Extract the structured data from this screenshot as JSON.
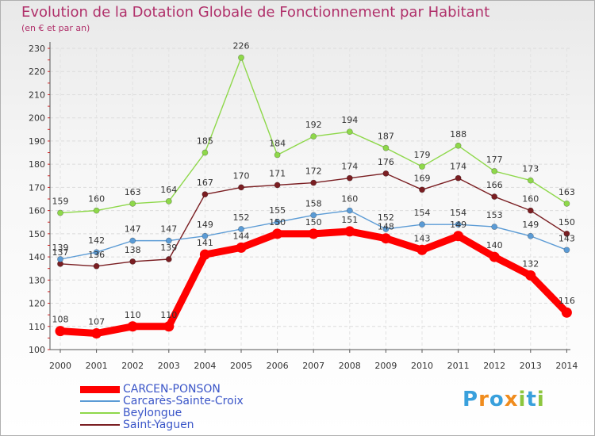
{
  "chart_data": {
    "type": "line",
    "title": "Evolution de la Dotation Globale de Fonctionnement par Habitant",
    "subtitle": "(en € et par an)",
    "xlabel": "",
    "ylabel": "",
    "ylim": [
      100,
      230
    ],
    "yticks": [
      100,
      110,
      120,
      130,
      140,
      150,
      160,
      170,
      180,
      190,
      200,
      210,
      220,
      230
    ],
    "categories": [
      "2000",
      "2001",
      "2002",
      "2003",
      "2004",
      "2005",
      "2006",
      "2007",
      "2008",
      "2009",
      "2010",
      "2011",
      "2012",
      "2013",
      "2014"
    ],
    "series": [
      {
        "name": "CARCEN-PONSON",
        "color": "#ff0000",
        "values": [
          108,
          107,
          110,
          110,
          141,
          144,
          150,
          150,
          151,
          148,
          143,
          149,
          140,
          132,
          116
        ]
      },
      {
        "name": "Carcarès-Sainte-Croix",
        "color": "#5b9bd5",
        "values": [
          139,
          142,
          147,
          147,
          149,
          152,
          155,
          158,
          160,
          152,
          154,
          154,
          153,
          149,
          143
        ]
      },
      {
        "name": "Beylongue",
        "color": "#8ed84a",
        "values": [
          159,
          160,
          163,
          164,
          185,
          226,
          184,
          192,
          194,
          187,
          179,
          188,
          177,
          173,
          163
        ]
      },
      {
        "name": "Saint-Yaguen",
        "color": "#7a1e22",
        "values": [
          137,
          136,
          138,
          139,
          167,
          170,
          171,
          172,
          174,
          176,
          169,
          174,
          166,
          160,
          150
        ]
      }
    ],
    "legend_position": "bottom-left"
  },
  "logo": {
    "letters": [
      "P",
      "r",
      "o",
      "x",
      "i",
      "t",
      "i"
    ],
    "colors": [
      "#39a0dc",
      "#f08c1e",
      "#39a0dc",
      "#f08c1e",
      "#8cc63e",
      "#39a0dc",
      "#8cc63e"
    ]
  }
}
